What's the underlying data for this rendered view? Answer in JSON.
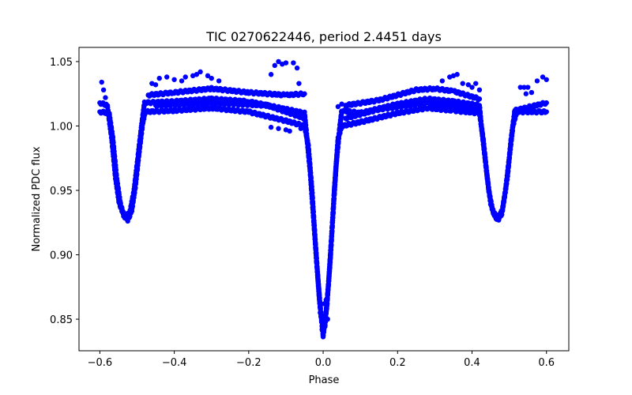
{
  "chart_data": {
    "type": "scatter",
    "title": "TIC 0270622446, period 2.4451 days",
    "xlabel": "Phase",
    "ylabel": "Normalized PDC flux",
    "xlim": [
      -0.656,
      0.66
    ],
    "ylim": [
      0.8255,
      1.061
    ],
    "xticks": [
      -0.6,
      -0.4,
      -0.2,
      0.0,
      0.2,
      0.4,
      0.6
    ],
    "xtick_labels": [
      "−0.6",
      "−0.4",
      "−0.2",
      "0.0",
      "0.2",
      "0.4",
      "0.6"
    ],
    "yticks": [
      0.85,
      0.9,
      0.95,
      1.0,
      1.05
    ],
    "ytick_labels": [
      "0.85",
      "0.90",
      "0.95",
      "1.00",
      "1.05"
    ],
    "grid": false,
    "marker_color": "#0000ff",
    "tracks": [
      [
        [
          -0.6,
          1.011
        ],
        [
          -0.575,
          1.01
        ],
        [
          -0.565,
          0.99
        ],
        [
          -0.555,
          0.96
        ],
        [
          -0.545,
          0.94
        ],
        [
          -0.535,
          0.93
        ],
        [
          -0.525,
          0.927
        ],
        [
          -0.515,
          0.933
        ],
        [
          -0.505,
          0.952
        ],
        [
          -0.495,
          0.978
        ],
        [
          -0.485,
          1.002
        ],
        [
          -0.478,
          1.011
        ],
        [
          -0.4,
          1.012
        ],
        [
          -0.3,
          1.014
        ],
        [
          -0.2,
          1.011
        ],
        [
          -0.1,
          1.004
        ],
        [
          -0.05,
          1.0
        ],
        [
          -0.04,
          0.985
        ],
        [
          -0.03,
          0.95
        ],
        [
          -0.02,
          0.905
        ],
        [
          -0.01,
          0.865
        ],
        [
          0,
          0.837
        ],
        [
          0.01,
          0.86
        ],
        [
          0.02,
          0.9
        ],
        [
          0.03,
          0.95
        ],
        [
          0.04,
          0.99
        ],
        [
          0.05,
          1.0
        ],
        [
          0.1,
          1.003
        ],
        [
          0.2,
          1.01
        ],
        [
          0.28,
          1.014
        ],
        [
          0.35,
          1.012
        ],
        [
          0.42,
          1.01
        ],
        [
          0.43,
          0.99
        ],
        [
          0.44,
          0.962
        ],
        [
          0.45,
          0.94
        ],
        [
          0.46,
          0.93
        ],
        [
          0.47,
          0.927
        ],
        [
          0.48,
          0.932
        ],
        [
          0.49,
          0.95
        ],
        [
          0.5,
          0.975
        ],
        [
          0.51,
          1.0
        ],
        [
          0.52,
          1.011
        ],
        [
          0.6,
          1.011
        ]
      ],
      [
        [
          -0.6,
          1.018
        ],
        [
          -0.58,
          1.016
        ],
        [
          -0.568,
          0.99
        ],
        [
          -0.558,
          0.96
        ],
        [
          -0.548,
          0.94
        ],
        [
          -0.535,
          0.93
        ],
        [
          -0.52,
          0.932
        ],
        [
          -0.508,
          0.95
        ],
        [
          -0.498,
          0.975
        ],
        [
          -0.488,
          1.0
        ],
        [
          -0.48,
          1.018
        ],
        [
          -0.4,
          1.019
        ],
        [
          -0.3,
          1.021
        ],
        [
          -0.2,
          1.019
        ],
        [
          -0.1,
          1.013
        ],
        [
          -0.05,
          1.01
        ],
        [
          -0.045,
          0.995
        ],
        [
          -0.035,
          0.965
        ],
        [
          -0.025,
          0.925
        ],
        [
          -0.015,
          0.885
        ],
        [
          -0.005,
          0.85
        ],
        [
          0.005,
          0.845
        ],
        [
          0.015,
          0.88
        ],
        [
          0.025,
          0.925
        ],
        [
          0.035,
          0.97
        ],
        [
          0.045,
          1.0
        ],
        [
          0.05,
          1.012
        ],
        [
          0.1,
          1.01
        ],
        [
          0.2,
          1.017
        ],
        [
          0.28,
          1.021
        ],
        [
          0.35,
          1.019
        ],
        [
          0.42,
          1.016
        ],
        [
          0.425,
          1.0
        ],
        [
          0.435,
          0.975
        ],
        [
          0.445,
          0.95
        ],
        [
          0.455,
          0.935
        ],
        [
          0.468,
          0.928
        ],
        [
          0.482,
          0.935
        ],
        [
          0.495,
          0.96
        ],
        [
          0.505,
          0.99
        ],
        [
          0.515,
          1.012
        ],
        [
          0.6,
          1.018
        ]
      ],
      [
        [
          -0.47,
          1.024
        ],
        [
          -0.4,
          1.026
        ],
        [
          -0.3,
          1.029
        ],
        [
          -0.2,
          1.026
        ],
        [
          -0.1,
          1.024
        ],
        [
          -0.05,
          1.025
        ]
      ],
      [
        [
          0.06,
          1.016
        ],
        [
          0.15,
          1.02
        ],
        [
          0.25,
          1.028
        ],
        [
          0.3,
          1.029
        ],
        [
          0.35,
          1.027
        ],
        [
          0.42,
          1.021
        ]
      ],
      [
        [
          -0.45,
          1.016
        ],
        [
          -0.3,
          1.018
        ],
        [
          -0.15,
          1.016
        ],
        [
          -0.05,
          1.006
        ]
      ],
      [
        [
          0.06,
          1.006
        ],
        [
          0.15,
          1.013
        ],
        [
          0.28,
          1.018
        ],
        [
          0.42,
          1.013
        ]
      ]
    ],
    "points": [
      [
        -0.595,
        1.034
      ],
      [
        -0.59,
        1.028
      ],
      [
        -0.585,
        1.022
      ],
      [
        -0.46,
        1.033
      ],
      [
        -0.44,
        1.037
      ],
      [
        -0.45,
        1.032
      ],
      [
        -0.42,
        1.038
      ],
      [
        -0.4,
        1.036
      ],
      [
        -0.38,
        1.035
      ],
      [
        -0.37,
        1.038
      ],
      [
        -0.35,
        1.039
      ],
      [
        -0.34,
        1.04
      ],
      [
        -0.33,
        1.042
      ],
      [
        -0.31,
        1.039
      ],
      [
        -0.3,
        1.037
      ],
      [
        -0.28,
        1.035
      ],
      [
        -0.14,
        1.04
      ],
      [
        -0.13,
        1.047
      ],
      [
        -0.12,
        1.05
      ],
      [
        -0.11,
        1.048
      ],
      [
        -0.1,
        1.049
      ],
      [
        -0.08,
        1.049
      ],
      [
        -0.07,
        1.045
      ],
      [
        -0.065,
        1.033
      ],
      [
        -0.14,
        0.999
      ],
      [
        -0.12,
        0.998
      ],
      [
        -0.1,
        0.997
      ],
      [
        -0.09,
        0.996
      ],
      [
        -0.06,
        0.998
      ],
      [
        -0.008,
        0.855
      ],
      [
        0.003,
        0.862
      ],
      [
        0.008,
        0.865
      ],
      [
        -0.003,
        0.842
      ],
      [
        0.0,
        0.845
      ],
      [
        -0.018,
        0.895
      ],
      [
        0.018,
        0.89
      ],
      [
        0.012,
        0.85
      ],
      [
        0.04,
        1.015
      ],
      [
        0.05,
        1.017
      ],
      [
        0.32,
        1.035
      ],
      [
        0.34,
        1.038
      ],
      [
        0.35,
        1.039
      ],
      [
        0.36,
        1.04
      ],
      [
        0.375,
        1.033
      ],
      [
        0.39,
        1.032
      ],
      [
        0.41,
        1.033
      ],
      [
        0.42,
        1.028
      ],
      [
        0.4,
        1.03
      ],
      [
        0.53,
        1.03
      ],
      [
        0.54,
        1.03
      ],
      [
        0.55,
        1.03
      ],
      [
        0.575,
        1.035
      ],
      [
        0.59,
        1.038
      ],
      [
        0.6,
        1.036
      ],
      [
        0.545,
        1.025
      ],
      [
        0.56,
        1.026
      ]
    ]
  }
}
